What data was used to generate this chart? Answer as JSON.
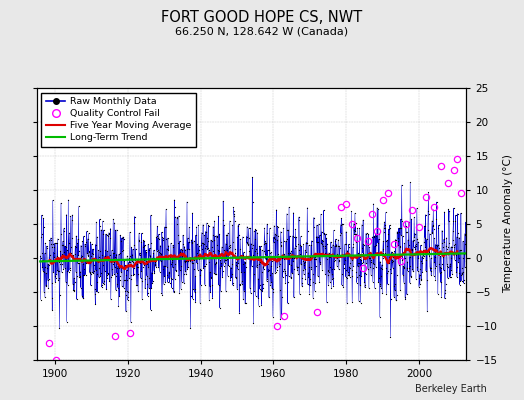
{
  "title": "FORT GOOD HOPE CS, NWT",
  "subtitle": "66.250 N, 128.642 W (Canada)",
  "ylabel": "Temperature Anomaly (°C)",
  "credit": "Berkeley Earth",
  "xlim": [
    1895,
    2013
  ],
  "ylim": [
    -15,
    25
  ],
  "yticks": [
    -15,
    -10,
    -5,
    0,
    5,
    10,
    15,
    20,
    25
  ],
  "xticks": [
    1900,
    1920,
    1940,
    1960,
    1980,
    2000
  ],
  "background_color": "#e8e8e8",
  "plot_bg_color": "#ffffff",
  "seed": 17,
  "start_year": 1896,
  "end_year": 2013,
  "moving_avg_color": "#dd0000",
  "trend_color": "#00bb00",
  "raw_line_color": "#0000cc",
  "raw_dot_color": "#000000",
  "qc_fail_color": "#ff00ff",
  "legend_loc": "upper left",
  "figwidth": 5.24,
  "figheight": 4.0,
  "dpi": 100
}
